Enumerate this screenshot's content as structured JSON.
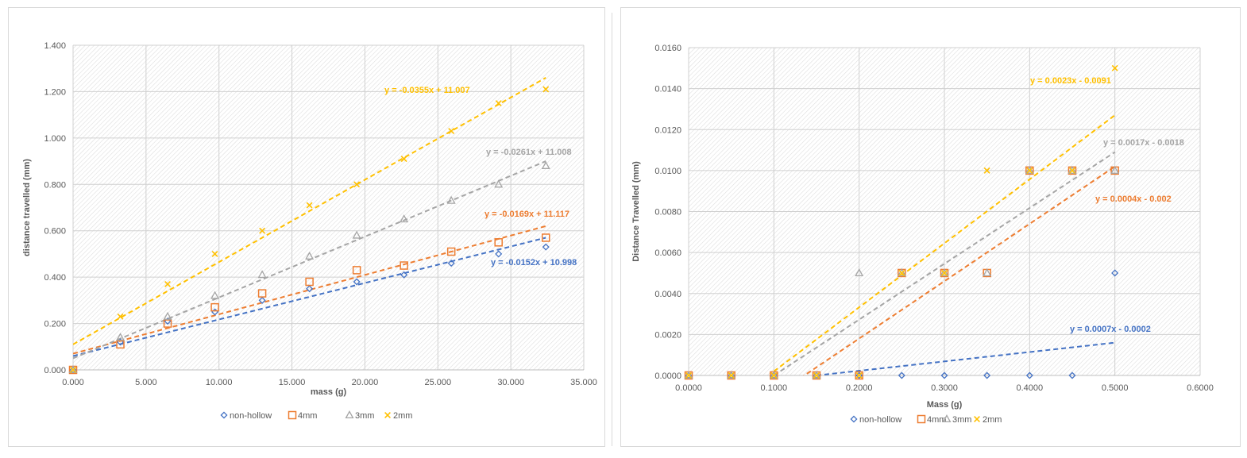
{
  "chart_data": [
    {
      "type": "scatter",
      "xlabel": "mass (g)",
      "ylabel": "distance travelled (mm)",
      "xlim": [
        0,
        35
      ],
      "ylim": [
        0,
        1.4
      ],
      "x_ticks": [
        "0.000",
        "5.000",
        "10.000",
        "15.000",
        "20.000",
        "25.000",
        "30.000",
        "35.000"
      ],
      "y_ticks": [
        "0.000",
        "0.200",
        "0.400",
        "0.600",
        "0.800",
        "1.000",
        "1.200",
        "1.400"
      ],
      "grid": true,
      "legend_position": "bottom",
      "series": [
        {
          "name": "non-hollow",
          "color": "#4472c4",
          "marker": "diamond",
          "x": [
            0,
            3.24,
            6.48,
            9.72,
            12.96,
            16.2,
            19.44,
            22.68,
            25.92,
            29.16,
            32.4
          ],
          "y": [
            0,
            0.12,
            0.21,
            0.25,
            0.3,
            0.35,
            0.38,
            0.41,
            0.46,
            0.5,
            0.53
          ],
          "trend": {
            "label": "y = -0.0152x + 10.998",
            "x": [
              0,
              32.4
            ],
            "y": [
              0.06,
              0.57
            ]
          }
        },
        {
          "name": "4mm",
          "color": "#ed7d31",
          "marker": "square",
          "x": [
            0,
            3.24,
            6.48,
            9.72,
            12.96,
            16.2,
            19.44,
            22.68,
            25.92,
            29.16,
            32.4
          ],
          "y": [
            0,
            0.11,
            0.2,
            0.27,
            0.33,
            0.38,
            0.43,
            0.45,
            0.51,
            0.55,
            0.57
          ],
          "trend": {
            "label": "y = -0.0169x + 11.117",
            "x": [
              0,
              32.4
            ],
            "y": [
              0.07,
              0.62
            ]
          }
        },
        {
          "name": "3mm",
          "color": "#a5a5a5",
          "marker": "triangle",
          "x": [
            0,
            3.24,
            6.48,
            9.72,
            12.96,
            16.2,
            19.44,
            22.68,
            25.92,
            29.16,
            32.4
          ],
          "y": [
            0,
            0.14,
            0.23,
            0.32,
            0.41,
            0.49,
            0.58,
            0.65,
            0.73,
            0.8,
            0.88
          ],
          "trend": {
            "label": "y = -0.0261x + 11.008",
            "x": [
              0,
              32.4
            ],
            "y": [
              0.05,
              0.9
            ]
          }
        },
        {
          "name": "2mm",
          "color": "#ffc000",
          "marker": "x",
          "x": [
            0,
            3.24,
            6.48,
            9.72,
            12.96,
            16.2,
            19.44,
            22.68,
            25.92,
            29.16,
            32.4
          ],
          "y": [
            0,
            0.23,
            0.37,
            0.5,
            0.6,
            0.71,
            0.8,
            0.91,
            1.03,
            1.15,
            1.21
          ],
          "trend": {
            "label": "y = -0.0355x + 11.007",
            "x": [
              0,
              32.4
            ],
            "y": [
              0.11,
              1.26
            ]
          }
        }
      ]
    },
    {
      "type": "scatter",
      "xlabel": "Mass (g)",
      "ylabel": "Distance Travelled (mm)",
      "xlim": [
        0,
        0.6
      ],
      "ylim": [
        0,
        0.016
      ],
      "x_ticks": [
        "0.0000",
        "0.1000",
        "0.2000",
        "0.3000",
        "0.4000",
        "0.5000",
        "0.6000"
      ],
      "y_ticks": [
        "0.0000",
        "0.0020",
        "0.0040",
        "0.0060",
        "0.0080",
        "0.0100",
        "0.0120",
        "0.0140",
        "0.0160"
      ],
      "grid": true,
      "legend_position": "bottom",
      "series": [
        {
          "name": "non-hollow",
          "color": "#4472c4",
          "marker": "diamond",
          "x": [
            0,
            0.05,
            0.1,
            0.15,
            0.2,
            0.25,
            0.3,
            0.35,
            0.4,
            0.45,
            0.5
          ],
          "y": [
            0,
            0,
            0,
            0,
            0,
            0,
            0,
            0,
            0,
            0,
            0.005
          ],
          "trend": {
            "label": "y = 0.0007x - 0.0002",
            "x": [
              0.15,
              0.5
            ],
            "y": [
              0,
              0.0016
            ]
          }
        },
        {
          "name": "4mm",
          "color": "#ed7d31",
          "marker": "square",
          "x": [
            0,
            0.05,
            0.1,
            0.15,
            0.2,
            0.25,
            0.3,
            0.35,
            0.4,
            0.45,
            0.5
          ],
          "y": [
            0,
            0,
            0,
            0,
            0,
            0.005,
            0.005,
            0.005,
            0.01,
            0.01,
            0.01
          ],
          "trend": {
            "label": "y = 0.0004x - 0.002",
            "x": [
              0.1,
              0.5
            ],
            "y": [
              -0.001,
              0.0102
            ]
          }
        },
        {
          "name": "3mm",
          "color": "#a5a5a5",
          "marker": "triangle",
          "x": [
            0,
            0.05,
            0.1,
            0.15,
            0.2,
            0.25,
            0.3,
            0.35,
            0.4,
            0.45,
            0.5
          ],
          "y": [
            0,
            0,
            0,
            0,
            0.005,
            0.005,
            0.005,
            0.005,
            0.01,
            0.01,
            0.01
          ],
          "trend": {
            "label": "y = 0.0017x - 0.0018",
            "x": [
              0.1,
              0.5
            ],
            "y": [
              0,
              0.0109
            ]
          }
        },
        {
          "name": "2mm",
          "color": "#ffc000",
          "marker": "x",
          "x": [
            0,
            0.05,
            0.1,
            0.15,
            0.2,
            0.25,
            0.3,
            0.35,
            0.4,
            0.45,
            0.5
          ],
          "y": [
            0,
            0,
            0,
            0,
            0,
            0.005,
            0.005,
            0.01,
            0.01,
            0.01,
            0.015
          ],
          "trend": {
            "label": "y = 0.0023x - 0.0091",
            "x": [
              0.1,
              0.5
            ],
            "y": [
              0.0002,
              0.0127
            ]
          }
        }
      ]
    }
  ]
}
